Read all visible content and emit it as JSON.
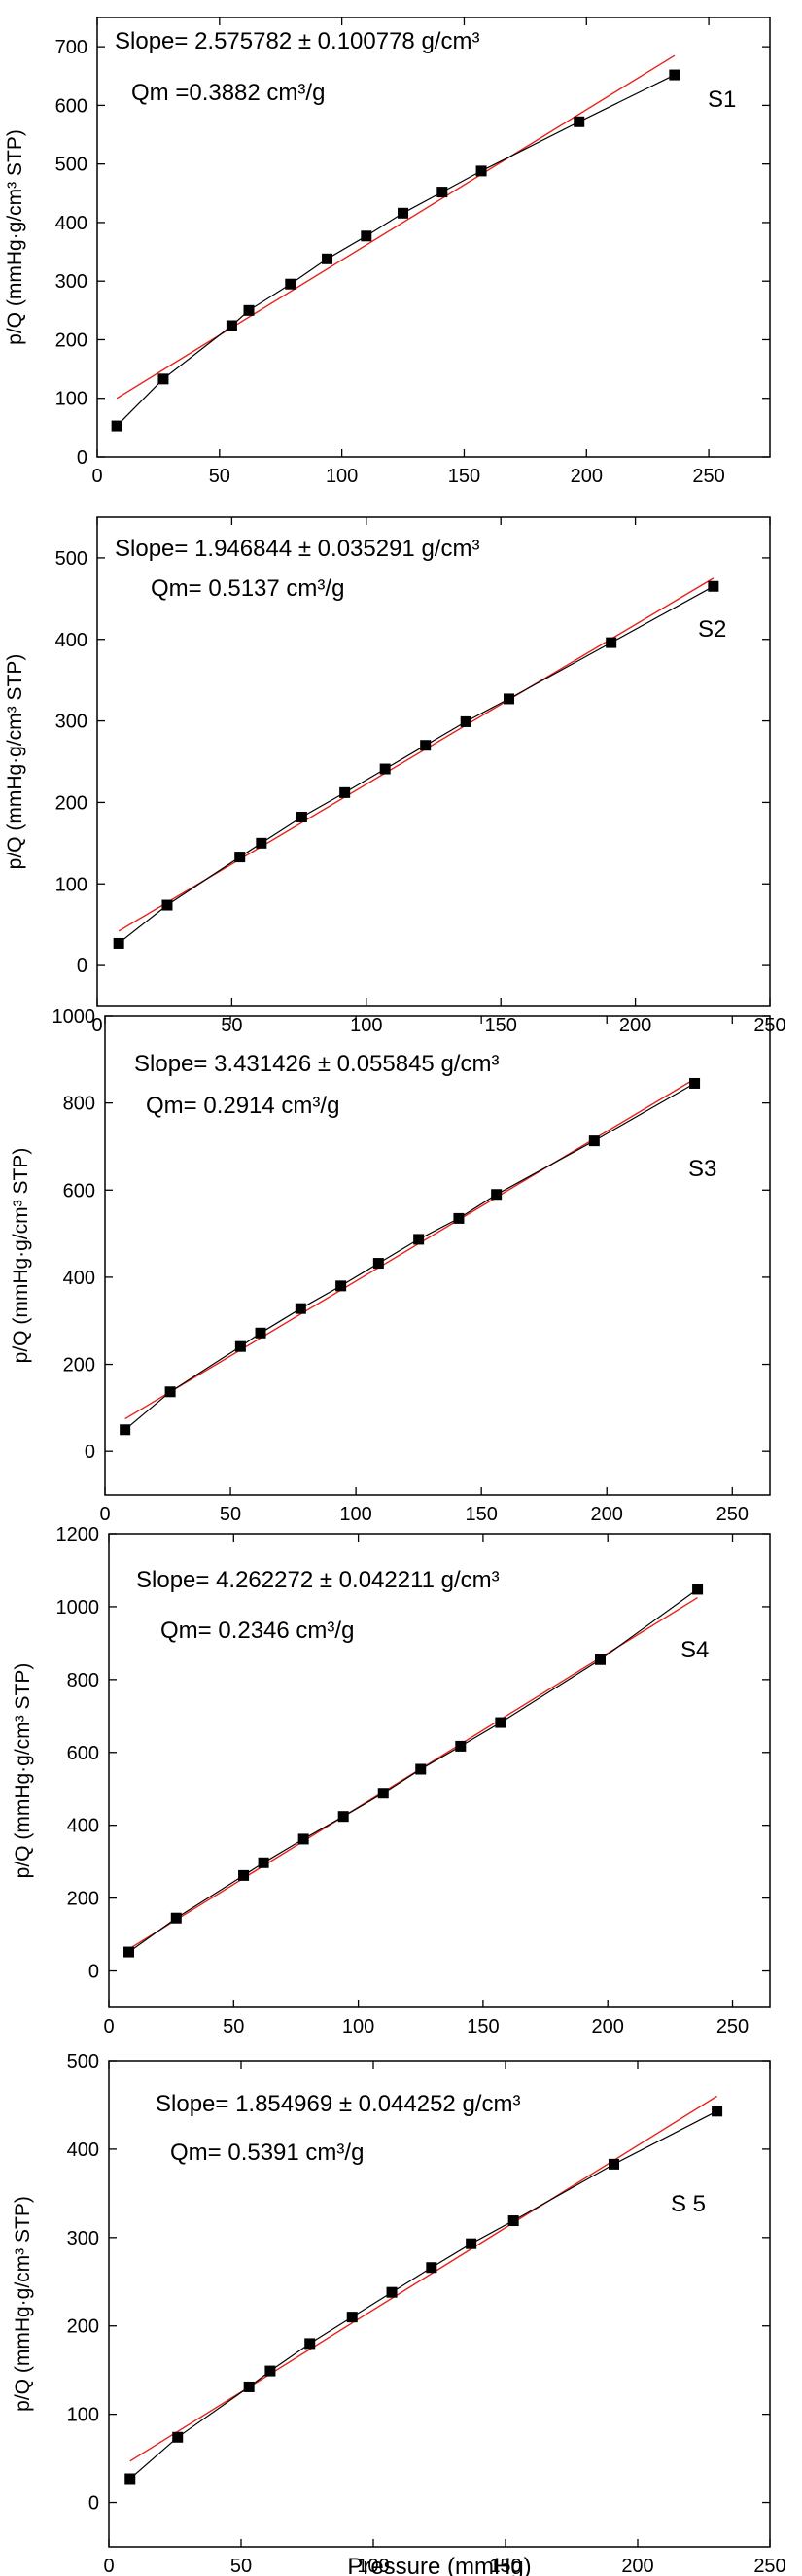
{
  "figure": {
    "xlabel": "Pressure (mmHg)"
  },
  "chart_data": [
    {
      "type": "scatter",
      "panel_label": "S1",
      "ylabel": "p/Q (mmHg·g/cm³ STP)",
      "annotations": [
        "Slope= 2.575782 ± 0.100778 g/cm³",
        "Qm =0.3882 cm³/g"
      ],
      "xlim": [
        0,
        275
      ],
      "ylim": [
        0,
        750
      ],
      "xticks": [
        0,
        50,
        100,
        150,
        200,
        250
      ],
      "yticks": [
        0,
        100,
        200,
        300,
        400,
        500,
        600,
        700
      ],
      "x": [
        8,
        27,
        55,
        62,
        79,
        94,
        110,
        125,
        141,
        157,
        197,
        236
      ],
      "y": [
        53,
        133,
        224,
        250,
        295,
        338,
        377,
        416,
        452,
        488,
        572,
        652
      ],
      "fit": {
        "x": [
          8,
          236
        ],
        "y": [
          100,
          685
        ]
      }
    },
    {
      "type": "scatter",
      "panel_label": "S2",
      "ylabel": "p/Q (mmHg·g/cm³ STP)",
      "annotations": [
        "Slope= 1.946844 ± 0.035291 g/cm³",
        "Qm= 0.5137 cm³/g"
      ],
      "xlim": [
        0,
        250
      ],
      "ylim": [
        -50,
        550
      ],
      "xticks": [
        0,
        50,
        100,
        150,
        200,
        250
      ],
      "yticks": [
        0,
        100,
        200,
        300,
        400,
        500
      ],
      "x": [
        8,
        26,
        53,
        61,
        76,
        92,
        107,
        122,
        137,
        153,
        191,
        229
      ],
      "y": [
        27,
        74,
        133,
        150,
        182,
        212,
        241,
        270,
        299,
        327,
        396,
        465
      ],
      "fit": {
        "x": [
          8,
          229
        ],
        "y": [
          42,
          475
        ]
      }
    },
    {
      "type": "scatter",
      "panel_label": "S3",
      "ylabel": "p/Q (mmHg·g/cm³ STP)",
      "annotations": [
        "Slope= 3.431426 ± 0.055845 g/cm³",
        "Qm= 0.2914 cm³/g"
      ],
      "xlim": [
        0,
        265
      ],
      "ylim": [
        -100,
        1000
      ],
      "xticks": [
        0,
        50,
        100,
        150,
        200,
        250
      ],
      "yticks": [
        0,
        200,
        400,
        600,
        800,
        1000
      ],
      "x": [
        8,
        26,
        54,
        62,
        78,
        94,
        109,
        125,
        141,
        156,
        195,
        235
      ],
      "y": [
        50,
        137,
        241,
        272,
        328,
        380,
        432,
        487,
        535,
        590,
        713,
        845
      ],
      "fit": {
        "x": [
          8,
          235
        ],
        "y": [
          75,
          855
        ]
      }
    },
    {
      "type": "scatter",
      "panel_label": "S4",
      "ylabel": "p/Q (mmHg·g/cm³ STP)",
      "annotations": [
        "Slope= 4.262272 ± 0.042211 g/cm³",
        "Qm= 0.2346 cm³/g"
      ],
      "xlim": [
        0,
        265
      ],
      "ylim": [
        -100,
        1200
      ],
      "xticks": [
        0,
        50,
        100,
        150,
        200,
        250
      ],
      "yticks": [
        0,
        200,
        400,
        600,
        800,
        1000,
        1200
      ],
      "x": [
        8,
        27,
        54,
        62,
        78,
        94,
        110,
        125,
        141,
        157,
        197,
        236
      ],
      "y": [
        52,
        145,
        262,
        297,
        362,
        424,
        488,
        554,
        617,
        682,
        855,
        1048
      ],
      "fit": {
        "x": [
          8,
          236
        ],
        "y": [
          60,
          1025
        ]
      }
    },
    {
      "type": "scatter",
      "panel_label": "S 5",
      "ylabel": "p/Q (mmHg·g/cm³ STP)",
      "annotations": [
        "Slope= 1.854969 ± 0.044252 g/cm³",
        "Qm= 0.5391 cm³/g"
      ],
      "xlim": [
        0,
        250
      ],
      "ylim": [
        -50,
        500
      ],
      "xticks": [
        0,
        50,
        100,
        150,
        200,
        250
      ],
      "yticks": [
        0,
        100,
        200,
        300,
        400,
        500
      ],
      "x": [
        8,
        26,
        53,
        61,
        76,
        92,
        107,
        122,
        137,
        153,
        191,
        230
      ],
      "y": [
        27,
        74,
        131,
        149,
        180,
        210,
        238,
        266,
        293,
        319,
        383,
        443
      ],
      "fit": {
        "x": [
          8,
          230
        ],
        "y": [
          47,
          460
        ]
      }
    }
  ]
}
